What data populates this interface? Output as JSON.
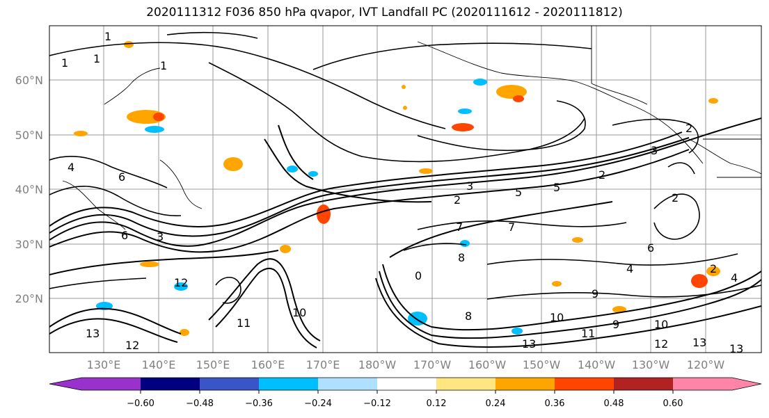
{
  "title": "2020111312 F036 850 hPa qvapor, IVT Landfall PC (2020111612 - 2020111812)",
  "lat_labels": [
    "60°N",
    "50°N",
    "40°N",
    "30°N",
    "20°N"
  ],
  "lon_labels": [
    "130°E",
    "140°E",
    "150°E",
    "160°E",
    "170°E",
    "180°W",
    "170°W",
    "160°W",
    "150°W",
    "140°W",
    "130°W",
    "120°W"
  ],
  "colorbar": {
    "colors": [
      "#9932cc",
      "#000080",
      "#3a55c8",
      "#00bfff",
      "#b0e0ff",
      "#ffffff",
      "#ffe680",
      "#ffa500",
      "#ff4500",
      "#b22222",
      "#ff85a8"
    ],
    "tick_labels": [
      "−0.60",
      "−0.48",
      "−0.36",
      "−0.24",
      "−0.12",
      "0.12",
      "0.24",
      "0.36",
      "0.48",
      "0.60"
    ]
  },
  "contour_labels": [
    "1",
    "1",
    "1",
    "1",
    "4",
    "6",
    "6",
    "3",
    "3",
    "2",
    "7",
    "7",
    "5",
    "8",
    "6",
    "4",
    "2",
    "12",
    "12",
    "11",
    "10",
    "10",
    "9",
    "10",
    "11",
    "12",
    "13",
    "13",
    "13",
    "13",
    "8",
    "9",
    "5",
    "2",
    "0",
    "2",
    "4",
    "3",
    "2"
  ]
}
